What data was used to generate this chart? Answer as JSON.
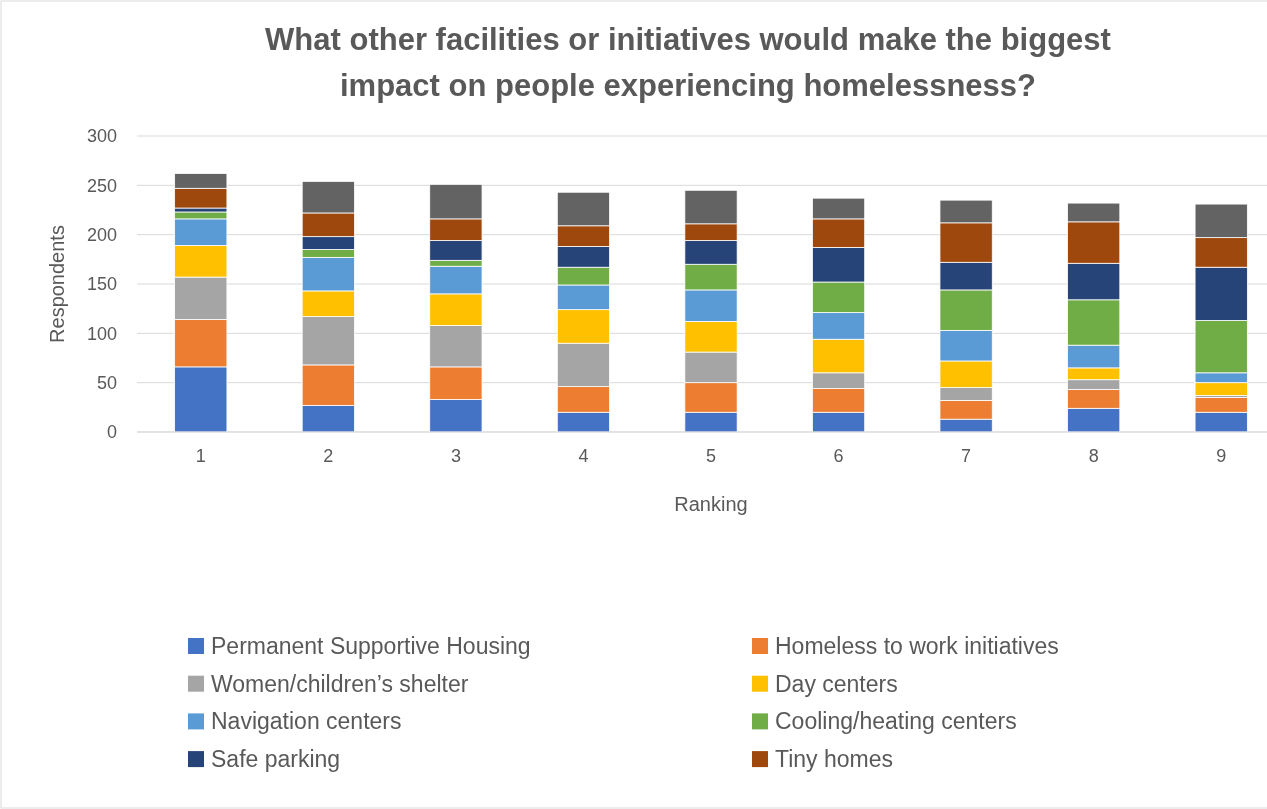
{
  "chart_data": {
    "type": "bar",
    "stacked": true,
    "title": "What other facilities or initiatives would make the biggest impact on people experiencing homelessness?",
    "xlabel": "Ranking",
    "ylabel": "Respondents",
    "categories": [
      "1",
      "2",
      "3",
      "4",
      "5",
      "6",
      "7",
      "8",
      "9"
    ],
    "ylim": [
      0,
      300
    ],
    "yticks": [
      0,
      50,
      100,
      150,
      200,
      250,
      300
    ],
    "grid": "y",
    "legend": "bottom",
    "series": [
      {
        "name": "Permanent Supportive Housing",
        "color": "#4472c4",
        "values": [
          66,
          27,
          33,
          20,
          20,
          20,
          13,
          24,
          20
        ]
      },
      {
        "name": "Homeless to work initiatives",
        "color": "#ed7d31",
        "values": [
          48,
          41,
          33,
          26,
          30,
          24,
          19,
          19,
          15
        ]
      },
      {
        "name": "Women/children’s shelter",
        "color": "#a5a5a5",
        "values": [
          43,
          49,
          42,
          44,
          31,
          16,
          13,
          10,
          2
        ]
      },
      {
        "name": "Day centers",
        "color": "#ffc000",
        "values": [
          32,
          26,
          32,
          34,
          31,
          34,
          27,
          12,
          13
        ]
      },
      {
        "name": "Navigation centers",
        "color": "#5b9bd5",
        "values": [
          27,
          34,
          28,
          25,
          32,
          27,
          31,
          23,
          10
        ]
      },
      {
        "name": "Cooling/heating centers",
        "color": "#70ad47",
        "values": [
          7,
          8,
          6,
          18,
          26,
          31,
          41,
          46,
          53
        ]
      },
      {
        "name": "Safe parking",
        "color": "#264478",
        "values": [
          4,
          13,
          20,
          21,
          24,
          35,
          28,
          37,
          54
        ]
      },
      {
        "name": "Tiny homes",
        "color": "#9e480e",
        "values": [
          20,
          24,
          22,
          21,
          17,
          29,
          40,
          42,
          30
        ]
      },
      {
        "color": "#636363",
        "values": [
          15,
          32,
          35,
          34,
          34,
          21,
          23,
          19,
          34
        ]
      }
    ]
  }
}
